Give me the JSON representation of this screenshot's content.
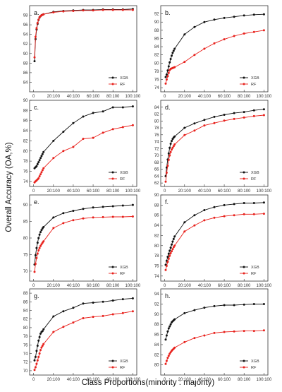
{
  "figure": {
    "ylabel": "Overall Accuracy (OA,%)",
    "xlabel": "Class Proportions(minority : majority)",
    "colors": {
      "XGB": "#111111",
      "RF": "#e8211c"
    }
  },
  "chart_data": [
    {
      "type": "line",
      "panel": "a.",
      "x_ticks": [
        "0",
        "20:100",
        "40:100",
        "60:100",
        "80:100",
        "100:100"
      ],
      "ylim": [
        82,
        100
      ],
      "y_ticks": [
        84,
        86,
        88,
        90,
        92,
        94,
        96,
        98
      ],
      "x": [
        1,
        2,
        3,
        4,
        5,
        6,
        7,
        8,
        9,
        10,
        20,
        30,
        40,
        50,
        60,
        70,
        80,
        90,
        100
      ],
      "series": [
        {
          "name": "XGB",
          "values": [
            88.4,
            93.0,
            95.0,
            96.2,
            97.0,
            97.5,
            97.8,
            98.0,
            98.1,
            98.2,
            98.7,
            98.9,
            99.0,
            99.1,
            99.1,
            99.2,
            99.2,
            99.2,
            99.3
          ]
        },
        {
          "name": "RF",
          "values": [
            89.2,
            93.5,
            95.3,
            96.4,
            97.1,
            97.6,
            97.8,
            98.0,
            98.1,
            98.2,
            98.6,
            98.8,
            98.9,
            99.0,
            99.0,
            99.1,
            99.1,
            99.1,
            99.1
          ]
        }
      ],
      "legend": "bottom-right"
    },
    {
      "type": "line",
      "panel": "b.",
      "x_ticks": [
        "0",
        "20:100",
        "40:100",
        "60:100",
        "80:100",
        "100:100"
      ],
      "ylim": [
        73,
        94
      ],
      "y_ticks": [
        74,
        76,
        78,
        80,
        82,
        84,
        86,
        88,
        90,
        92
      ],
      "x": [
        1,
        2,
        3,
        4,
        5,
        6,
        7,
        8,
        9,
        10,
        20,
        30,
        40,
        50,
        60,
        70,
        80,
        90,
        100
      ],
      "series": [
        {
          "name": "XGB",
          "values": [
            76.6,
            77.2,
            78.2,
            79.2,
            80.2,
            81.0,
            81.8,
            82.5,
            83.0,
            83.5,
            87.0,
            88.8,
            90.0,
            90.6,
            91.0,
            91.3,
            91.6,
            91.8,
            91.9
          ]
        },
        {
          "name": "RF",
          "values": [
            75.0,
            76.0,
            76.8,
            77.6,
            78.3,
            78.6,
            78.7,
            78.8,
            78.9,
            79.0,
            80.3,
            82.0,
            83.5,
            84.8,
            85.8,
            86.6,
            87.2,
            87.6,
            88.0
          ]
        }
      ],
      "legend": "bottom-right"
    },
    {
      "type": "line",
      "panel": "c.",
      "x_ticks": [
        "0",
        "20:100",
        "40:100",
        "60:100",
        "80:100",
        "100:100"
      ],
      "ylim": [
        73,
        90
      ],
      "y_ticks": [
        74,
        76,
        78,
        80,
        82,
        84,
        86,
        88,
        90
      ],
      "x": [
        1,
        2,
        3,
        4,
        5,
        6,
        7,
        8,
        9,
        10,
        20,
        30,
        40,
        50,
        60,
        70,
        80,
        90,
        100
      ],
      "series": [
        {
          "name": "XGB",
          "values": [
            76.6,
            76.8,
            77.0,
            77.4,
            77.8,
            78.2,
            78.6,
            79.0,
            79.4,
            79.8,
            82.0,
            83.8,
            85.5,
            86.8,
            87.5,
            87.8,
            88.6,
            88.6,
            88.8
          ]
        },
        {
          "name": "RF",
          "values": [
            73.8,
            74.0,
            74.2,
            74.4,
            74.6,
            75.0,
            75.4,
            75.8,
            76.2,
            76.6,
            78.6,
            80.0,
            80.8,
            82.4,
            82.6,
            83.6,
            84.3,
            84.7,
            85.1
          ]
        }
      ],
      "legend": "bottom-right"
    },
    {
      "type": "line",
      "panel": "d.",
      "x_ticks": [
        "0",
        "20:100",
        "40:100",
        "60:100",
        "80:100",
        "100:100"
      ],
      "ylim": [
        61,
        86
      ],
      "y_ticks": [
        62,
        64,
        66,
        68,
        70,
        72,
        74,
        76,
        78,
        80,
        82,
        84
      ],
      "x": [
        1,
        2,
        3,
        4,
        5,
        6,
        7,
        8,
        9,
        10,
        20,
        30,
        40,
        50,
        60,
        70,
        80,
        90,
        100
      ],
      "series": [
        {
          "name": "XGB",
          "values": [
            64.0,
            66.5,
            68.8,
            70.6,
            72.2,
            73.4,
            74.2,
            74.8,
            75.2,
            75.5,
            78.0,
            79.3,
            80.3,
            81.2,
            81.8,
            82.3,
            82.6,
            83.1,
            83.4
          ]
        },
        {
          "name": "RF",
          "values": [
            62.4,
            65.0,
            67.0,
            68.7,
            70.0,
            71.0,
            71.7,
            72.2,
            72.7,
            73.2,
            75.9,
            77.2,
            78.7,
            79.4,
            80.1,
            80.6,
            81.0,
            81.4,
            81.7
          ]
        }
      ],
      "legend": "bottom-right"
    },
    {
      "type": "line",
      "panel": "e.",
      "x_ticks": [
        "0",
        "20:100",
        "40:100",
        "60:100",
        "80:100",
        "100:100"
      ],
      "ylim": [
        67,
        93
      ],
      "y_ticks": [
        70,
        75,
        80,
        85,
        90
      ],
      "x": [
        1,
        2,
        3,
        4,
        5,
        6,
        7,
        8,
        9,
        10,
        20,
        30,
        40,
        50,
        60,
        70,
        80,
        90,
        100
      ],
      "series": [
        {
          "name": "XGB",
          "values": [
            72.0,
            74.8,
            77.0,
            78.6,
            80.0,
            81.0,
            81.8,
            82.4,
            82.9,
            83.3,
            86.2,
            87.5,
            88.2,
            88.8,
            89.2,
            89.4,
            89.6,
            89.8,
            90.0
          ]
        },
        {
          "name": "RF",
          "values": [
            69.8,
            72.2,
            74.0,
            75.3,
            76.3,
            77.0,
            77.6,
            78.1,
            78.6,
            79.0,
            83.0,
            84.5,
            85.4,
            85.9,
            86.2,
            86.3,
            86.4,
            86.4,
            86.5
          ]
        }
      ],
      "legend": "bottom-right"
    },
    {
      "type": "line",
      "panel": "f.",
      "x_ticks": [
        "0",
        "20:100",
        "40:100",
        "60:100",
        "80:100",
        "100:100"
      ],
      "ylim": [
        73,
        90
      ],
      "y_ticks": [
        74,
        76,
        78,
        80,
        82,
        84,
        86,
        88,
        90
      ],
      "x": [
        1,
        2,
        3,
        4,
        5,
        6,
        7,
        8,
        9,
        10,
        20,
        30,
        40,
        50,
        60,
        70,
        80,
        90,
        100
      ],
      "series": [
        {
          "name": "XGB",
          "values": [
            76.2,
            77.0,
            77.8,
            78.4,
            79.0,
            79.6,
            80.2,
            80.8,
            81.3,
            81.8,
            84.6,
            86.0,
            87.0,
            87.6,
            88.0,
            88.2,
            88.4,
            88.4,
            88.5
          ]
        },
        {
          "name": "RF",
          "values": [
            75.2,
            76.0,
            76.8,
            77.4,
            78.0,
            78.5,
            78.9,
            79.3,
            79.7,
            80.0,
            82.8,
            84.0,
            85.0,
            85.5,
            85.8,
            86.0,
            86.2,
            86.2,
            86.3
          ]
        }
      ],
      "legend": "bottom-right"
    },
    {
      "type": "line",
      "panel": "g.",
      "x_ticks": [
        "0",
        "20:100",
        "40:100",
        "60:100",
        "80:100",
        "100:100"
      ],
      "ylim": [
        69,
        89
      ],
      "y_ticks": [
        70,
        72,
        74,
        76,
        78,
        80,
        82,
        84,
        86,
        88
      ],
      "x": [
        1,
        2,
        3,
        4,
        5,
        6,
        7,
        8,
        9,
        10,
        20,
        30,
        40,
        50,
        60,
        70,
        80,
        90,
        100
      ],
      "series": [
        {
          "name": "XGB",
          "values": [
            72.4,
            73.2,
            74.6,
            75.8,
            77.0,
            77.8,
            78.6,
            79.0,
            79.2,
            79.6,
            82.6,
            83.8,
            84.6,
            85.6,
            85.8,
            86.0,
            86.3,
            86.6,
            86.8
          ]
        },
        {
          "name": "RF",
          "values": [
            70.2,
            70.8,
            71.6,
            72.4,
            73.2,
            74.0,
            74.8,
            75.4,
            75.8,
            76.2,
            79.0,
            80.2,
            81.2,
            82.2,
            82.5,
            82.7,
            83.1,
            83.4,
            83.8
          ]
        }
      ],
      "legend": "bottom-right"
    },
    {
      "type": "line",
      "panel": "h.",
      "x_ticks": [
        "0",
        "20:100",
        "40:100",
        "60:100",
        "80:100",
        "100:100"
      ],
      "ylim": [
        78,
        95
      ],
      "y_ticks": [
        80,
        82,
        84,
        86,
        88,
        90,
        92,
        94
      ],
      "x": [
        1,
        2,
        3,
        4,
        5,
        6,
        7,
        8,
        9,
        10,
        20,
        30,
        40,
        50,
        60,
        70,
        80,
        90,
        100
      ],
      "series": [
        {
          "name": "XGB",
          "values": [
            85.0,
            85.8,
            86.6,
            87.2,
            87.6,
            88.0,
            88.4,
            88.6,
            88.8,
            89.0,
            90.2,
            90.8,
            91.3,
            91.6,
            91.8,
            91.8,
            91.9,
            92.0,
            92.0
          ]
        },
        {
          "name": "RF",
          "values": [
            80.2,
            80.8,
            81.4,
            81.8,
            82.2,
            82.5,
            82.8,
            83.0,
            83.2,
            83.4,
            84.5,
            85.3,
            85.8,
            86.3,
            86.5,
            86.6,
            86.7,
            86.7,
            86.8
          ]
        }
      ],
      "legend": "bottom-right"
    }
  ]
}
